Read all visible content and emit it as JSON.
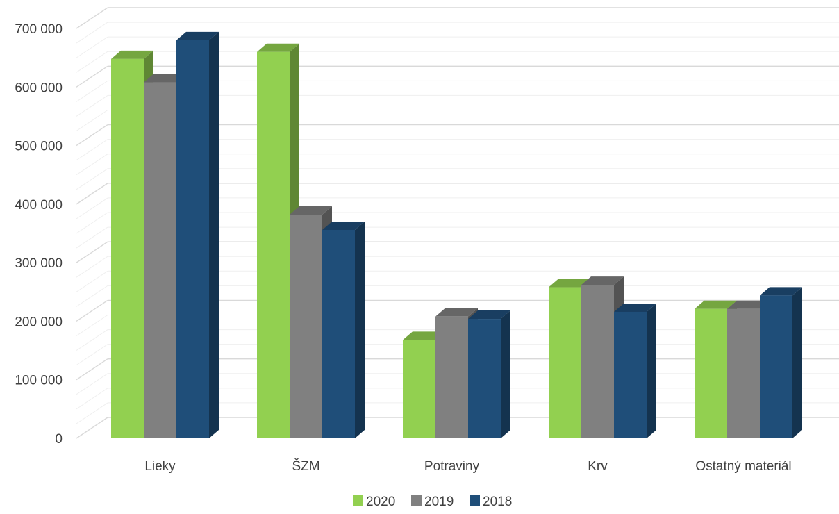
{
  "chart_data": {
    "type": "bar",
    "title": "",
    "xlabel": "",
    "ylabel": "",
    "categories": [
      "Lieky",
      "ŠZM",
      "Potraviny",
      "Krv",
      "Ostatný materiál"
    ],
    "series": [
      {
        "name": "2020",
        "values": [
          648000,
          660000,
          168000,
          258000,
          221000
        ],
        "color": "#92d050"
      },
      {
        "name": "2019",
        "values": [
          608000,
          382000,
          208000,
          262000,
          221000
        ],
        "color": "#808080"
      },
      {
        "name": "2018",
        "values": [
          680000,
          356000,
          204000,
          216000,
          244000
        ],
        "color": "#1f4e79"
      }
    ],
    "ylim": [
      0,
      700000
    ],
    "yticks": [
      0,
      100000,
      200000,
      300000,
      400000,
      500000,
      600000,
      700000
    ],
    "ytick_labels": [
      "0",
      "100 000",
      "200 000",
      "300 000",
      "400 000",
      "500 000",
      "600 000",
      "700 000"
    ],
    "grid": true,
    "legend": "bottom",
    "style": "3d-clustered-column"
  }
}
